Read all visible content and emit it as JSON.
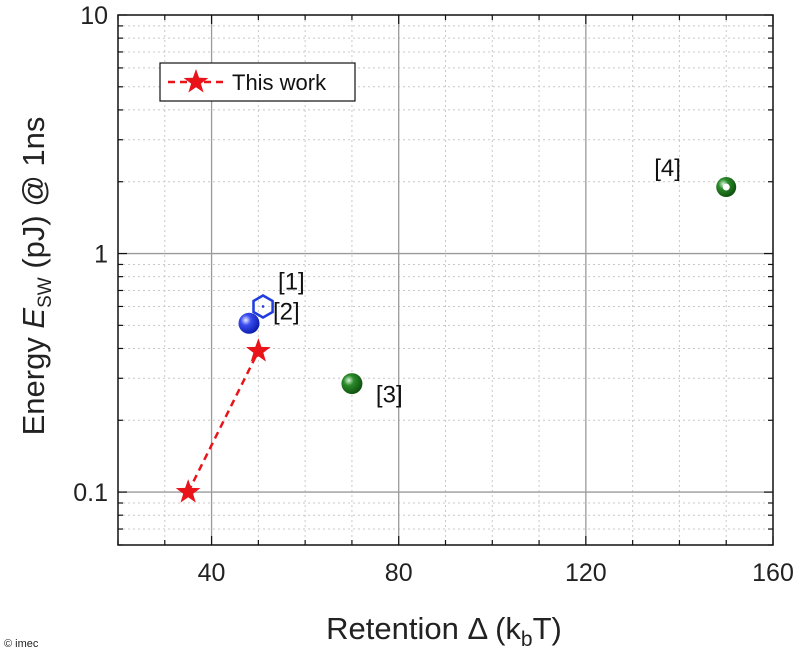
{
  "chart_data": {
    "type": "scatter",
    "xlabel": {
      "main": "Retention Δ (k",
      "sub": "b",
      "tail": "T)"
    },
    "ylabel": {
      "main": "Energy ",
      "italic": "E",
      "sub": "SW",
      "tail": " (pJ) @ 1ns"
    },
    "xlim": [
      20,
      160
    ],
    "ylim": [
      0.06,
      10
    ],
    "yscale": "log",
    "xticks": [
      40,
      80,
      120,
      160
    ],
    "yticks": [
      {
        "value": 0.1,
        "label": "0.1"
      },
      {
        "value": 1,
        "label": "1"
      },
      {
        "value": 10,
        "label": "10"
      }
    ],
    "grid": true,
    "legend": {
      "position": "top-left",
      "entries": [
        "This work"
      ]
    },
    "series": [
      {
        "name": "This work",
        "marker": "star",
        "color": "#e8141a",
        "line": "dashed",
        "points": [
          {
            "x": 35,
            "y": 0.1
          },
          {
            "x": 50,
            "y": 0.39
          }
        ]
      }
    ],
    "references": [
      {
        "label": "[1]",
        "x": 51,
        "y": 0.6,
        "marker": "hexagon-open",
        "color": "#1f3de0"
      },
      {
        "label": "[2]",
        "x": 48,
        "y": 0.51,
        "marker": "sphere",
        "color": "#1a2fe6"
      },
      {
        "label": "[3]",
        "x": 70,
        "y": 0.285,
        "marker": "sphere",
        "color": "#1e7d1e"
      },
      {
        "label": "[4]",
        "x": 150,
        "y": 1.9,
        "marker": "ring",
        "color": "#1e7d1e"
      }
    ]
  },
  "credit": "© imec"
}
